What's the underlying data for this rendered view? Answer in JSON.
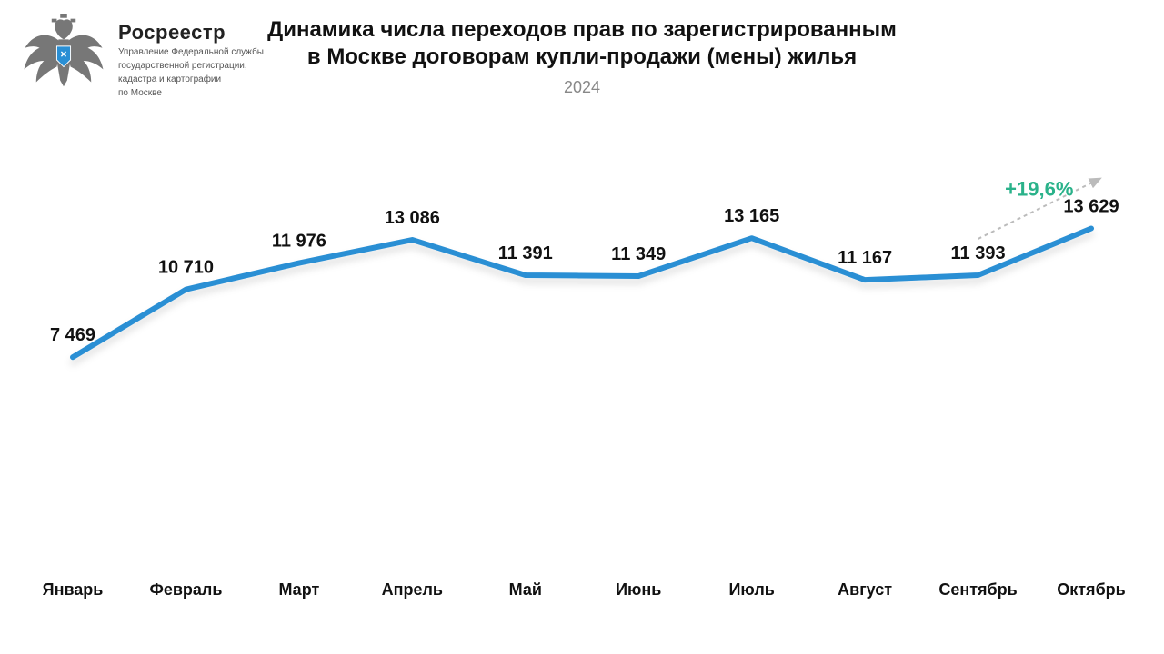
{
  "logo": {
    "title": "Росреестр",
    "subtitle_l1": "Управление Федеральной службы",
    "subtitle_l2": "государственной регистрации,",
    "subtitle_l3": "кадастра и картографии",
    "subtitle_l4": "по Москве",
    "eagle_color": "#777777",
    "shield_color": "#2a8fd4"
  },
  "header": {
    "title_l1": "Динамика числа переходов прав по зарегистрированным",
    "title_l2": "в Москве договорам купли-продажи (мены) жилья",
    "subtitle": "2024"
  },
  "chart": {
    "type": "line",
    "categories": [
      "Январь",
      "Февраль",
      "Март",
      "Апрель",
      "Май",
      "Июнь",
      "Июль",
      "Август",
      "Сентябрь",
      "Октябрь"
    ],
    "values": [
      7469,
      10710,
      11976,
      13086,
      11391,
      11349,
      13165,
      11167,
      11393,
      13629
    ],
    "value_labels": [
      "7 469",
      "10 710",
      "11 976",
      "13 086",
      "11 391",
      "11 349",
      "13 165",
      "11 167",
      "11 393",
      "13 629"
    ],
    "line_color": "#2a8fd4",
    "line_width": 6,
    "line_shadow_color": "#00000020",
    "drop_line_color": "#cccccc",
    "drop_line_width": 2,
    "background_color": "#ffffff",
    "value_label_fontsize": 20,
    "month_label_fontsize": 18,
    "y_min_display": 5000,
    "y_max_display": 15000,
    "annotation": {
      "text": "+19,6%",
      "color": "#2ab28a",
      "fontsize": 22,
      "arrow_color": "#bbbbbb",
      "from_index": 8,
      "to_index": 9
    }
  }
}
